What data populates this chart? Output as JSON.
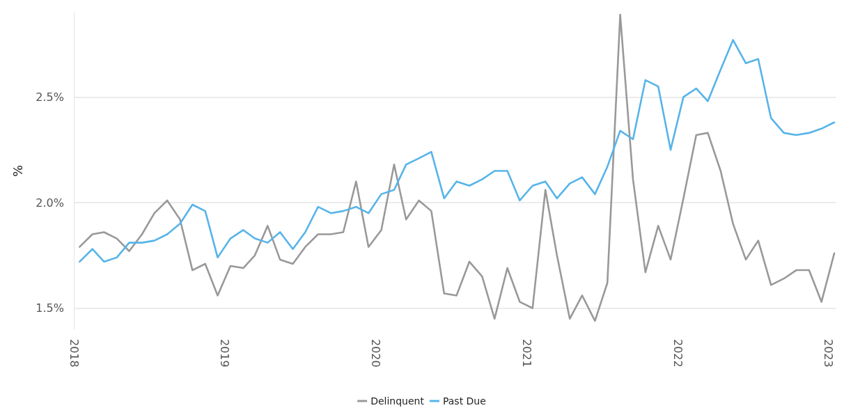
{
  "chart_data": {
    "type": "line",
    "ylabel": "%",
    "x": [
      "2018-01-15",
      "2018-02-15",
      "2018-03-15",
      "2018-04-15",
      "2018-05-15",
      "2018-06-15",
      "2018-07-15",
      "2018-08-15",
      "2018-09-15",
      "2018-10-15",
      "2018-11-15",
      "2018-12-15",
      "2019-01-15",
      "2019-02-15",
      "2019-03-15",
      "2019-04-15",
      "2019-05-15",
      "2019-06-15",
      "2019-07-15",
      "2019-08-15",
      "2019-09-15",
      "2019-10-15",
      "2019-11-15",
      "2019-12-15",
      "2020-01-15",
      "2020-02-15",
      "2020-03-15",
      "2020-04-15",
      "2020-05-15",
      "2020-06-15",
      "2020-07-15",
      "2020-08-15",
      "2020-09-15",
      "2020-10-15",
      "2020-11-15",
      "2020-12-15",
      "2021-01-15",
      "2021-02-15",
      "2021-03-15",
      "2021-04-15",
      "2021-05-15",
      "2021-06-15",
      "2021-07-15",
      "2021-08-15",
      "2021-09-15",
      "2021-10-15",
      "2021-11-15",
      "2021-12-15",
      "2022-01-15",
      "2022-02-15",
      "2022-03-15",
      "2022-04-15",
      "2022-05-15",
      "2022-06-15",
      "2022-07-15",
      "2022-08-15",
      "2022-09-15",
      "2022-10-15",
      "2022-11-15",
      "2022-12-15",
      "2023-01-15"
    ],
    "series": [
      {
        "name": "Delinquent",
        "color": "#999999",
        "values": [
          1.79,
          1.85,
          1.86,
          1.83,
          1.77,
          1.85,
          1.95,
          2.01,
          1.92,
          1.68,
          1.71,
          1.56,
          1.7,
          1.69,
          1.75,
          1.89,
          1.73,
          1.71,
          1.79,
          1.85,
          1.85,
          1.86,
          2.1,
          1.79,
          1.87,
          2.18,
          1.92,
          2.01,
          1.96,
          1.57,
          1.56,
          1.72,
          1.65,
          1.45,
          1.69,
          1.53,
          1.5,
          2.06,
          1.75,
          1.45,
          1.56,
          1.44,
          1.62,
          2.89,
          2.11,
          1.67,
          1.89,
          1.73,
          2.02,
          2.32,
          2.33,
          2.15,
          1.9,
          1.73,
          1.82,
          1.61,
          1.64,
          1.68,
          1.68,
          1.53,
          1.76
        ]
      },
      {
        "name": "Past Due",
        "color": "#56b4e9",
        "values": [
          1.72,
          1.78,
          1.72,
          1.74,
          1.81,
          1.81,
          1.82,
          1.85,
          1.9,
          1.99,
          1.96,
          1.74,
          1.83,
          1.87,
          1.83,
          1.81,
          1.86,
          1.78,
          1.86,
          1.98,
          1.95,
          1.96,
          1.98,
          1.95,
          2.04,
          2.06,
          2.18,
          2.21,
          2.24,
          2.02,
          2.1,
          2.08,
          2.11,
          2.15,
          2.15,
          2.01,
          2.08,
          2.1,
          2.02,
          2.09,
          2.12,
          2.04,
          2.17,
          2.34,
          2.3,
          2.58,
          2.55,
          2.25,
          2.5,
          2.54,
          2.48,
          2.63,
          2.77,
          2.66,
          2.68,
          2.4,
          2.33,
          2.32,
          2.33,
          2.35,
          2.38
        ]
      }
    ],
    "xlim": [
      "2018-01-01",
      "2023-01-20"
    ],
    "xticks": [
      "2018",
      "2019",
      "2020",
      "2021",
      "2022",
      "2023"
    ],
    "ylim": [
      1.4,
      2.9
    ],
    "yticks": [
      {
        "value": 1.5,
        "label": "1.5%"
      },
      {
        "value": 2.0,
        "label": "2.0%"
      },
      {
        "value": 2.5,
        "label": "2.5%"
      }
    ],
    "grid": "y",
    "legend": "bottom",
    "marker": "none",
    "line_style": "solid"
  }
}
